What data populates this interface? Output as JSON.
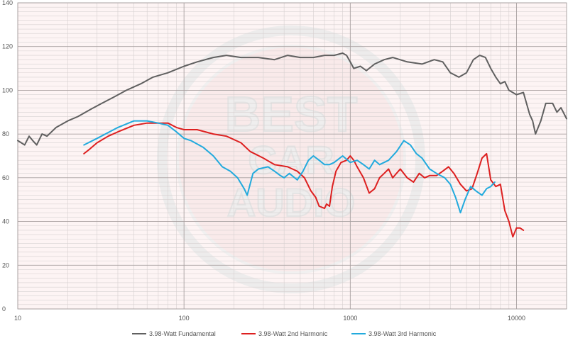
{
  "chart_data": {
    "type": "line",
    "title": "",
    "xlabel": "",
    "ylabel": "",
    "x_scale": "log",
    "xlim": [
      10,
      20000
    ],
    "ylim": [
      0,
      140
    ],
    "grid": true,
    "legend_position": "bottom",
    "x_ticks": [
      "10",
      "100",
      "1000",
      "10000"
    ],
    "y_ticks": [
      "0",
      "20",
      "40",
      "60",
      "80",
      "100",
      "120",
      "140"
    ],
    "watermark": "BEST CAR AUDIO",
    "series": [
      {
        "name": "3.98-Watt Fundamental",
        "color": "#606060",
        "points": [
          [
            10,
            77
          ],
          [
            10.5,
            76
          ],
          [
            11,
            75
          ],
          [
            11.7,
            79
          ],
          [
            12.3,
            77
          ],
          [
            13,
            75
          ],
          [
            14,
            80
          ],
          [
            15,
            79
          ],
          [
            17,
            83
          ],
          [
            20,
            86
          ],
          [
            23,
            88
          ],
          [
            27,
            91
          ],
          [
            32,
            94
          ],
          [
            38,
            97
          ],
          [
            45,
            100
          ],
          [
            55,
            103
          ],
          [
            65,
            106
          ],
          [
            80,
            108
          ],
          [
            100,
            111
          ],
          [
            120,
            113
          ],
          [
            150,
            115
          ],
          [
            180,
            116
          ],
          [
            220,
            115
          ],
          [
            280,
            115
          ],
          [
            350,
            114
          ],
          [
            420,
            116
          ],
          [
            500,
            115
          ],
          [
            600,
            115
          ],
          [
            700,
            116
          ],
          [
            800,
            116
          ],
          [
            900,
            117
          ],
          [
            950,
            116
          ],
          [
            1000,
            113
          ],
          [
            1050,
            110
          ],
          [
            1150,
            111
          ],
          [
            1250,
            109
          ],
          [
            1400,
            112
          ],
          [
            1600,
            114
          ],
          [
            1800,
            115
          ],
          [
            2200,
            113
          ],
          [
            2700,
            112
          ],
          [
            3200,
            114
          ],
          [
            3600,
            113
          ],
          [
            4000,
            108
          ],
          [
            4500,
            106
          ],
          [
            5000,
            108
          ],
          [
            5500,
            114
          ],
          [
            6000,
            116
          ],
          [
            6500,
            115
          ],
          [
            7000,
            110
          ],
          [
            7500,
            106
          ],
          [
            8000,
            103
          ],
          [
            8500,
            104
          ],
          [
            9000,
            100
          ],
          [
            10000,
            98
          ],
          [
            11000,
            99
          ],
          [
            12000,
            89
          ],
          [
            12500,
            86
          ],
          [
            13000,
            80
          ],
          [
            14000,
            86
          ],
          [
            15000,
            94
          ],
          [
            16500,
            94
          ],
          [
            17500,
            90
          ],
          [
            18500,
            92
          ],
          [
            20000,
            87
          ]
        ]
      },
      {
        "name": "3.98-Watt 2nd Harmonic",
        "color": "#dd2020",
        "points": [
          [
            25,
            71
          ],
          [
            27,
            73
          ],
          [
            30,
            76
          ],
          [
            35,
            79
          ],
          [
            40,
            81
          ],
          [
            50,
            84
          ],
          [
            60,
            85
          ],
          [
            70,
            85
          ],
          [
            80,
            85
          ],
          [
            90,
            83
          ],
          [
            100,
            82
          ],
          [
            120,
            82
          ],
          [
            150,
            80
          ],
          [
            180,
            79
          ],
          [
            220,
            76
          ],
          [
            250,
            72
          ],
          [
            300,
            69
          ],
          [
            350,
            66
          ],
          [
            420,
            65
          ],
          [
            480,
            63
          ],
          [
            530,
            60
          ],
          [
            580,
            54
          ],
          [
            620,
            51
          ],
          [
            650,
            47
          ],
          [
            700,
            46
          ],
          [
            720,
            48
          ],
          [
            750,
            47
          ],
          [
            780,
            56
          ],
          [
            820,
            63
          ],
          [
            880,
            67
          ],
          [
            950,
            68
          ],
          [
            1000,
            70
          ],
          [
            1050,
            68
          ],
          [
            1100,
            65
          ],
          [
            1200,
            60
          ],
          [
            1300,
            53
          ],
          [
            1400,
            55
          ],
          [
            1500,
            60
          ],
          [
            1600,
            62
          ],
          [
            1700,
            64
          ],
          [
            1800,
            60
          ],
          [
            2000,
            64
          ],
          [
            2200,
            60
          ],
          [
            2400,
            58
          ],
          [
            2600,
            62
          ],
          [
            2800,
            60
          ],
          [
            3000,
            61
          ],
          [
            3300,
            61
          ],
          [
            3600,
            63
          ],
          [
            3900,
            65
          ],
          [
            4200,
            62
          ],
          [
            4600,
            57
          ],
          [
            5000,
            54
          ],
          [
            5400,
            55
          ],
          [
            5800,
            62
          ],
          [
            6200,
            69
          ],
          [
            6600,
            71
          ],
          [
            7000,
            59
          ],
          [
            7500,
            56
          ],
          [
            8000,
            57
          ],
          [
            8500,
            45
          ],
          [
            9000,
            40
          ],
          [
            9500,
            33
          ],
          [
            10000,
            37
          ],
          [
            10500,
            37
          ],
          [
            11000,
            36
          ]
        ]
      },
      {
        "name": "3.98-Watt 3rd Harmonic",
        "color": "#22aadd",
        "points": [
          [
            25,
            75
          ],
          [
            30,
            78
          ],
          [
            40,
            83
          ],
          [
            50,
            86
          ],
          [
            60,
            86
          ],
          [
            70,
            85
          ],
          [
            80,
            84
          ],
          [
            90,
            81
          ],
          [
            100,
            78
          ],
          [
            110,
            77
          ],
          [
            130,
            74
          ],
          [
            150,
            70
          ],
          [
            170,
            65
          ],
          [
            190,
            63
          ],
          [
            210,
            60
          ],
          [
            230,
            55
          ],
          [
            240,
            52
          ],
          [
            260,
            62
          ],
          [
            280,
            64
          ],
          [
            320,
            65
          ],
          [
            350,
            63
          ],
          [
            380,
            61
          ],
          [
            400,
            60
          ],
          [
            430,
            62
          ],
          [
            480,
            59
          ],
          [
            520,
            63
          ],
          [
            560,
            68
          ],
          [
            600,
            70
          ],
          [
            650,
            68
          ],
          [
            700,
            66
          ],
          [
            750,
            66
          ],
          [
            800,
            67
          ],
          [
            900,
            70
          ],
          [
            1000,
            67
          ],
          [
            1100,
            68
          ],
          [
            1200,
            66
          ],
          [
            1300,
            64
          ],
          [
            1400,
            68
          ],
          [
            1500,
            66
          ],
          [
            1700,
            68
          ],
          [
            1900,
            72
          ],
          [
            2100,
            77
          ],
          [
            2300,
            75
          ],
          [
            2500,
            71
          ],
          [
            2700,
            69
          ],
          [
            3000,
            64
          ],
          [
            3300,
            62
          ],
          [
            3700,
            60
          ],
          [
            4000,
            57
          ],
          [
            4300,
            51
          ],
          [
            4600,
            44
          ],
          [
            4900,
            50
          ],
          [
            5300,
            56
          ],
          [
            5700,
            54
          ],
          [
            6200,
            52
          ],
          [
            6600,
            55
          ],
          [
            7000,
            56
          ],
          [
            7400,
            58
          ]
        ]
      }
    ]
  }
}
